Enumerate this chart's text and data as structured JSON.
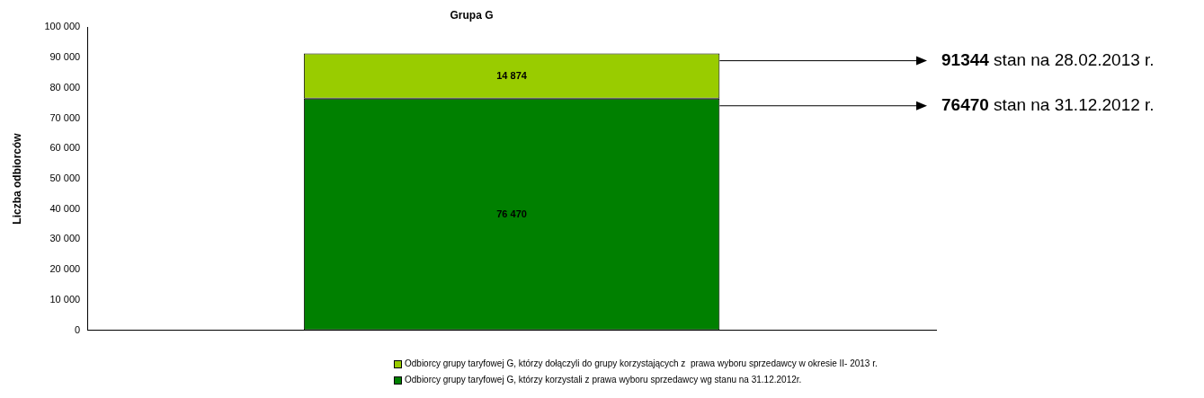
{
  "chart_data": {
    "type": "bar",
    "title": "Grupa G",
    "ylabel": "Liczba odbiorców",
    "stacked": true,
    "categories": [
      null
    ],
    "series": [
      {
        "name": "Odbiorcy grupy taryfowej G, którzy korzystali z prawa wyboru sprzedawcy wg stanu na 31.12.2012r.",
        "color": "#008000",
        "values": [
          76470
        ],
        "value_labels": [
          "76 470"
        ]
      },
      {
        "name": "Odbiorcy grupy taryfowej G, którzy dołączyli do grupy korzystających z  prawa wyboru sprzedawcy w okresie II- 2013 r.",
        "color": "#99cc00",
        "values": [
          14874
        ],
        "value_labels": [
          "14 874"
        ]
      }
    ],
    "ylim": [
      0,
      100000
    ],
    "yticks": [
      0,
      {
        "value": 10000,
        "label": "10 000"
      },
      {
        "value": 20000,
        "label": "20 000"
      },
      {
        "value": 30000,
        "label": "30 000"
      },
      {
        "value": 40000,
        "label": "40 000"
      },
      {
        "value": 50000,
        "label": "50 000"
      },
      {
        "value": 60000,
        "label": "60 000"
      },
      {
        "value": 70000,
        "label": "70 000"
      },
      {
        "value": 80000,
        "label": "80 000"
      },
      {
        "value": 90000,
        "label": "90 000"
      },
      {
        "value": 100000,
        "label": "100 000"
      }
    ],
    "grid": false,
    "legend": "bottom",
    "annotations": [
      "91344 stan na 28.02.2013 r.",
      "76470 stan na 31.12.2012 r."
    ]
  }
}
